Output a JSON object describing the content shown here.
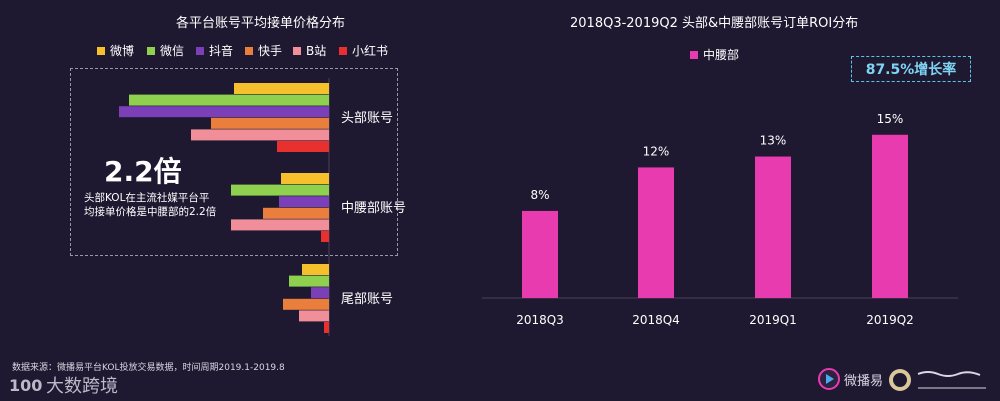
{
  "left_chart": {
    "title": "各平台账号平均接单价格分布",
    "legend": [
      {
        "name": "微博",
        "color": "#f5c02c"
      },
      {
        "name": "微信",
        "color": "#8fd14f"
      },
      {
        "name": "抖音",
        "color": "#7b3fb8"
      },
      {
        "name": "快手",
        "color": "#ea7e3c"
      },
      {
        "name": "B站",
        "color": "#f08f9a"
      },
      {
        "name": "小红书",
        "color": "#e8302e"
      }
    ],
    "highlight": {
      "value": "2.2倍",
      "line1": "头部KOL在主流社媒平台平",
      "line2": "均接单价格是中腰部的2.2倍"
    }
  },
  "right_chart": {
    "title": "2018Q3-2019Q2 头部&中腰部账号订单ROI分布",
    "growth_label": "87.5%增长率"
  },
  "chart_data": [
    {
      "type": "bar",
      "orientation": "horizontal",
      "title": "各平台账号平均接单价格分布",
      "categories": [
        "头部账号",
        "中腰部账号",
        "尾部账号"
      ],
      "series": [
        {
          "name": "微博",
          "values": [
            95,
            48,
            27
          ]
        },
        {
          "name": "微信",
          "values": [
            200,
            98,
            40
          ]
        },
        {
          "name": "抖音",
          "values": [
            210,
            50,
            18
          ]
        },
        {
          "name": "快手",
          "values": [
            118,
            66,
            46
          ]
        },
        {
          "name": "B站",
          "values": [
            138,
            98,
            30
          ]
        },
        {
          "name": "小红书",
          "values": [
            52,
            8,
            5
          ]
        }
      ],
      "xlim": [
        0,
        210
      ],
      "grid": false,
      "legend": "top"
    },
    {
      "type": "bar",
      "title": "2018Q3-2019Q2 头部&中腰部账号订单ROI分布",
      "categories": [
        "2018Q3",
        "2018Q4",
        "2019Q1",
        "2019Q2"
      ],
      "series": [
        {
          "name": "中腰部",
          "values": [
            8,
            12,
            13,
            15
          ],
          "labels": [
            "8%",
            "12%",
            "13%",
            "15%"
          ],
          "color": "#e93bb0"
        }
      ],
      "ylim": [
        0,
        17
      ],
      "grid": false,
      "legend": "top"
    }
  ],
  "footer": {
    "source": "数据来源：微播易平台KOL投放交易数据，时间周期2019.1-2019.8",
    "logo_left": "大数跨境",
    "logo_right_brand": "微播易"
  }
}
